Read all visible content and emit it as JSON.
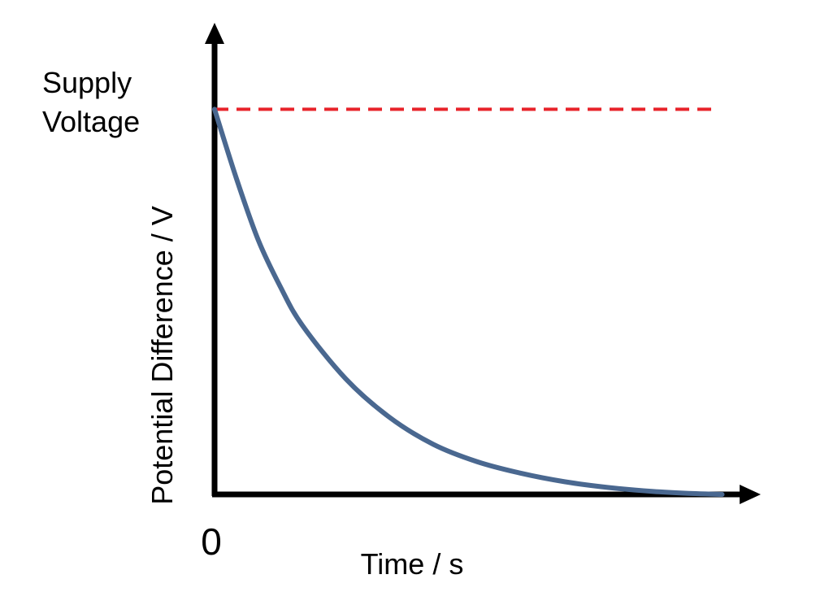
{
  "chart_data": {
    "type": "line",
    "title": "",
    "xlabel": "Time / s",
    "ylabel": "Potential Difference / V",
    "origin_label": "0",
    "supply_label_line1": "Supply",
    "supply_label_line2": "Voltage",
    "xlim": [
      0,
      6
    ],
    "ylim": [
      0,
      1.1
    ],
    "grid": false,
    "legend": "none",
    "series": [
      {
        "style": "solid",
        "color": "#4a6890",
        "x": [
          0,
          0.25,
          0.5,
          0.75,
          1,
          1.5,
          2,
          2.5,
          3,
          3.5,
          4,
          4.5,
          5,
          5.5,
          5.8
        ],
        "y": [
          1.0,
          0.82,
          0.66,
          0.54,
          0.44,
          0.3,
          0.2,
          0.13,
          0.085,
          0.055,
          0.033,
          0.018,
          0.008,
          0.002,
          0.0
        ]
      }
    ],
    "reference_line": {
      "style": "dashed",
      "color": "#e8232a",
      "y": 1.0,
      "x": [
        0,
        6
      ]
    }
  }
}
